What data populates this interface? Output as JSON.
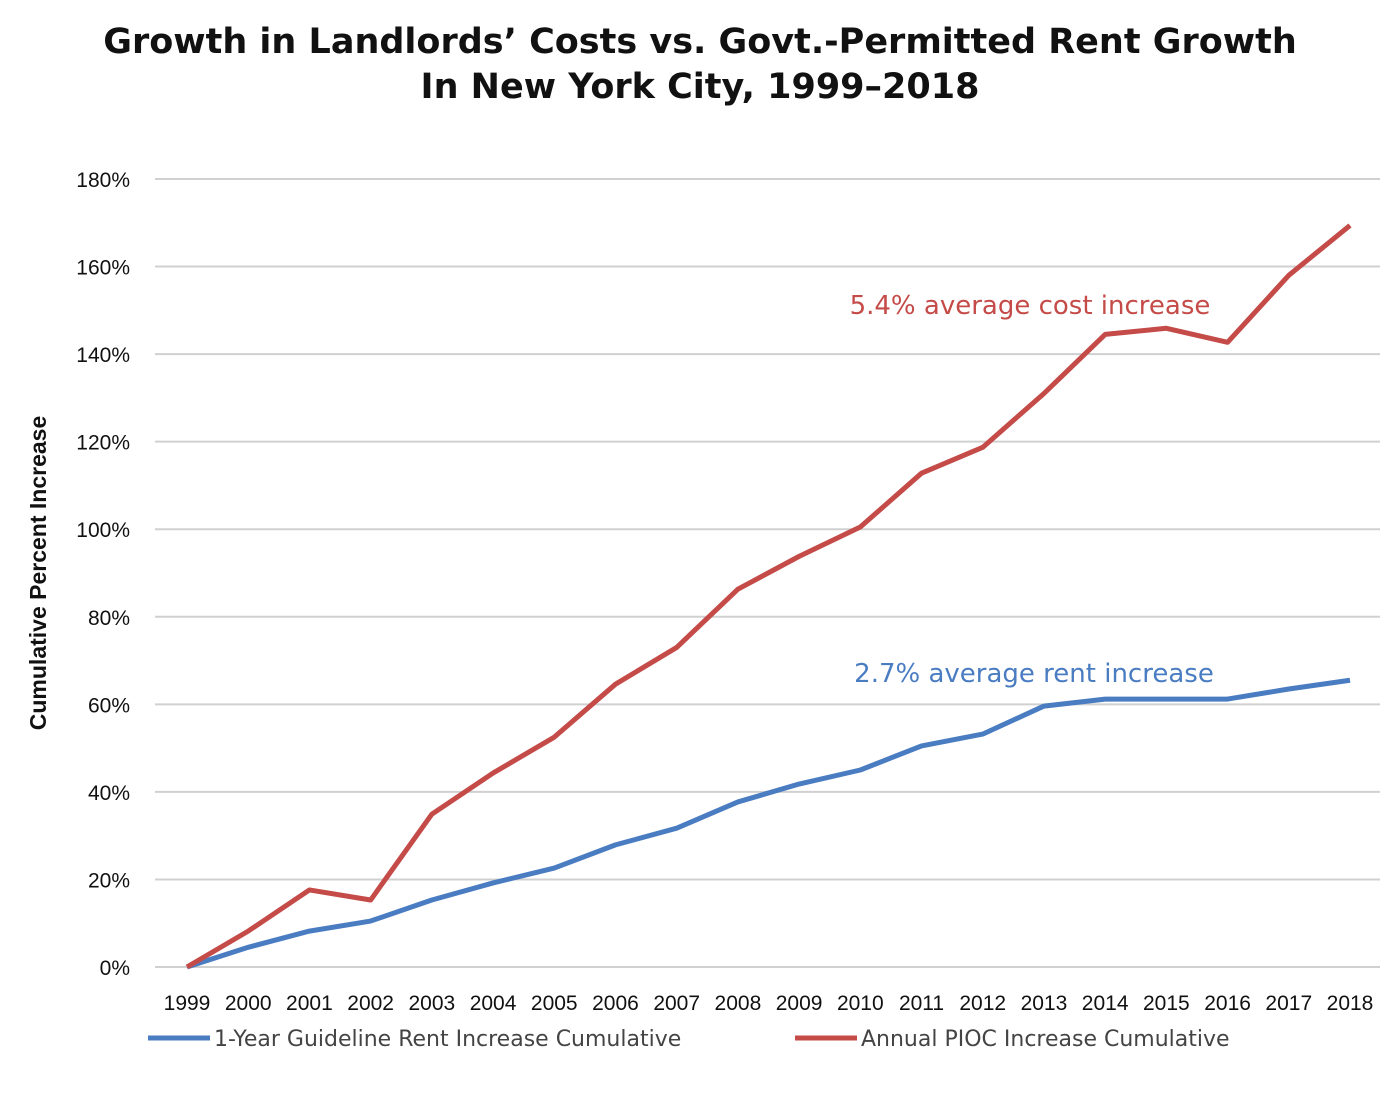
{
  "chart_data": {
    "type": "line",
    "title": "Growth in Landlords’ Costs vs. Govt.-Permitted Rent Growth",
    "subtitle": "In New York City, 1999–2018",
    "xlabel": "",
    "ylabel": "Cumulative Percent Increase",
    "ylim": [
      0,
      180
    ],
    "yticks": [
      "0%",
      "20%",
      "40%",
      "60%",
      "80%",
      "100%",
      "120%",
      "140%",
      "160%",
      "180%"
    ],
    "grid": true,
    "legend_position": "bottom",
    "x": [
      "1999",
      "2000",
      "2001",
      "2002",
      "2003",
      "2004",
      "2005",
      "2006",
      "2007",
      "2008",
      "2009",
      "2010",
      "2011",
      "2012",
      "2013",
      "2014",
      "2015",
      "2016",
      "2017",
      "2018"
    ],
    "series": [
      {
        "name": "1-Year Guideline Rent Increase Cumulative",
        "color": "#4a7cc2",
        "values": [
          0,
          4.5,
          8.2,
          10.5,
          15.3,
          19.2,
          22.6,
          27.9,
          31.7,
          37.7,
          41.8,
          45.0,
          50.5,
          53.2,
          59.6,
          61.2,
          61.2,
          61.2,
          63.5,
          65.5
        ]
      },
      {
        "name": "Annual PIOC Increase Cumulative",
        "color": "#c44b48",
        "values": [
          0,
          8.2,
          17.6,
          15.3,
          34.9,
          44.3,
          52.5,
          64.6,
          73.0,
          86.3,
          93.8,
          100.5,
          112.8,
          118.7,
          131.0,
          144.5,
          145.9,
          142.7,
          158.0,
          169.4
        ]
      }
    ],
    "annotations": [
      {
        "text": "5.4% average cost increase",
        "color": "#c44b48",
        "near_x": "2013",
        "near_y": 152
      },
      {
        "text": "2.7% average rent increase",
        "color": "#4a7cc2",
        "near_x": "2013",
        "near_y": 68
      }
    ]
  }
}
